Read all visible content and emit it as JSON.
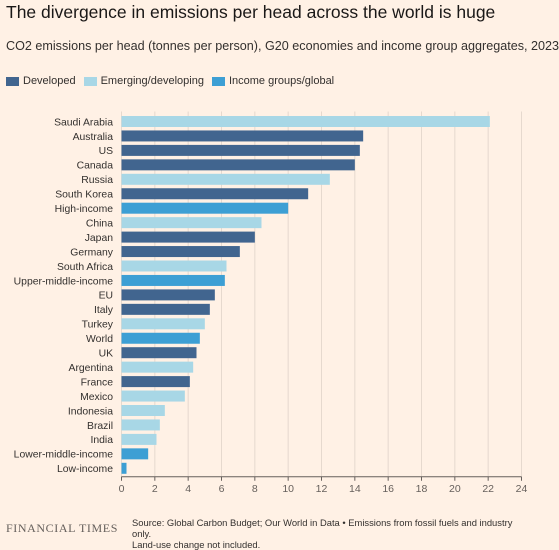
{
  "header": {
    "title": "The divergence in emissions per head across the world is huge",
    "subtitle": "CO2 emissions per head (tonnes per person), G20 economies and income group aggregates, 2023"
  },
  "legend": [
    {
      "label": "Developed",
      "color": "#41658f"
    },
    {
      "label": "Emerging/developing",
      "color": "#a8d7e6"
    },
    {
      "label": "Income groups/global",
      "color": "#3d9fd4"
    }
  ],
  "chart_data": {
    "type": "bar",
    "orientation": "horizontal",
    "title": "The divergence in emissions per head across the world is huge",
    "subtitle": "CO2 emissions per head (tonnes per person), G20 economies and income group aggregates, 2023",
    "xlim": [
      0,
      24
    ],
    "xticks": [
      "0",
      "2",
      "4",
      "6",
      "8",
      "10",
      "12",
      "14",
      "16",
      "18",
      "20",
      "22",
      "24"
    ],
    "grid": true,
    "legend_position": "top-left",
    "categories": [
      "Saudi Arabia",
      "Australia",
      "US",
      "Canada",
      "Russia",
      "South Korea",
      "High-income",
      "China",
      "Japan",
      "Germany",
      "South Africa",
      "Upper-middle-income",
      "EU",
      "Italy",
      "Turkey",
      "World",
      "UK",
      "Argentina",
      "France",
      "Mexico",
      "Indonesia",
      "Brazil",
      "India",
      "Lower-middle-income",
      "Low-income"
    ],
    "values": [
      22.1,
      14.5,
      14.3,
      14.0,
      12.5,
      11.2,
      10.0,
      8.4,
      8.0,
      7.1,
      6.3,
      6.2,
      5.6,
      5.3,
      5.0,
      4.7,
      4.5,
      4.3,
      4.1,
      3.8,
      2.6,
      2.3,
      2.1,
      1.6,
      0.3
    ],
    "groups": [
      "Emerging/developing",
      "Developed",
      "Developed",
      "Developed",
      "Emerging/developing",
      "Developed",
      "Income groups/global",
      "Emerging/developing",
      "Developed",
      "Developed",
      "Emerging/developing",
      "Income groups/global",
      "Developed",
      "Developed",
      "Emerging/developing",
      "Income groups/global",
      "Developed",
      "Emerging/developing",
      "Developed",
      "Emerging/developing",
      "Emerging/developing",
      "Emerging/developing",
      "Emerging/developing",
      "Income groups/global",
      "Income groups/global"
    ]
  },
  "footer": {
    "logo": "FINANCIAL TIMES",
    "source_line1": "Source: Global Carbon Budget; Our World in Data • Emissions from fossil fuels and industry only.",
    "source_line2": "Land-use change not included."
  }
}
